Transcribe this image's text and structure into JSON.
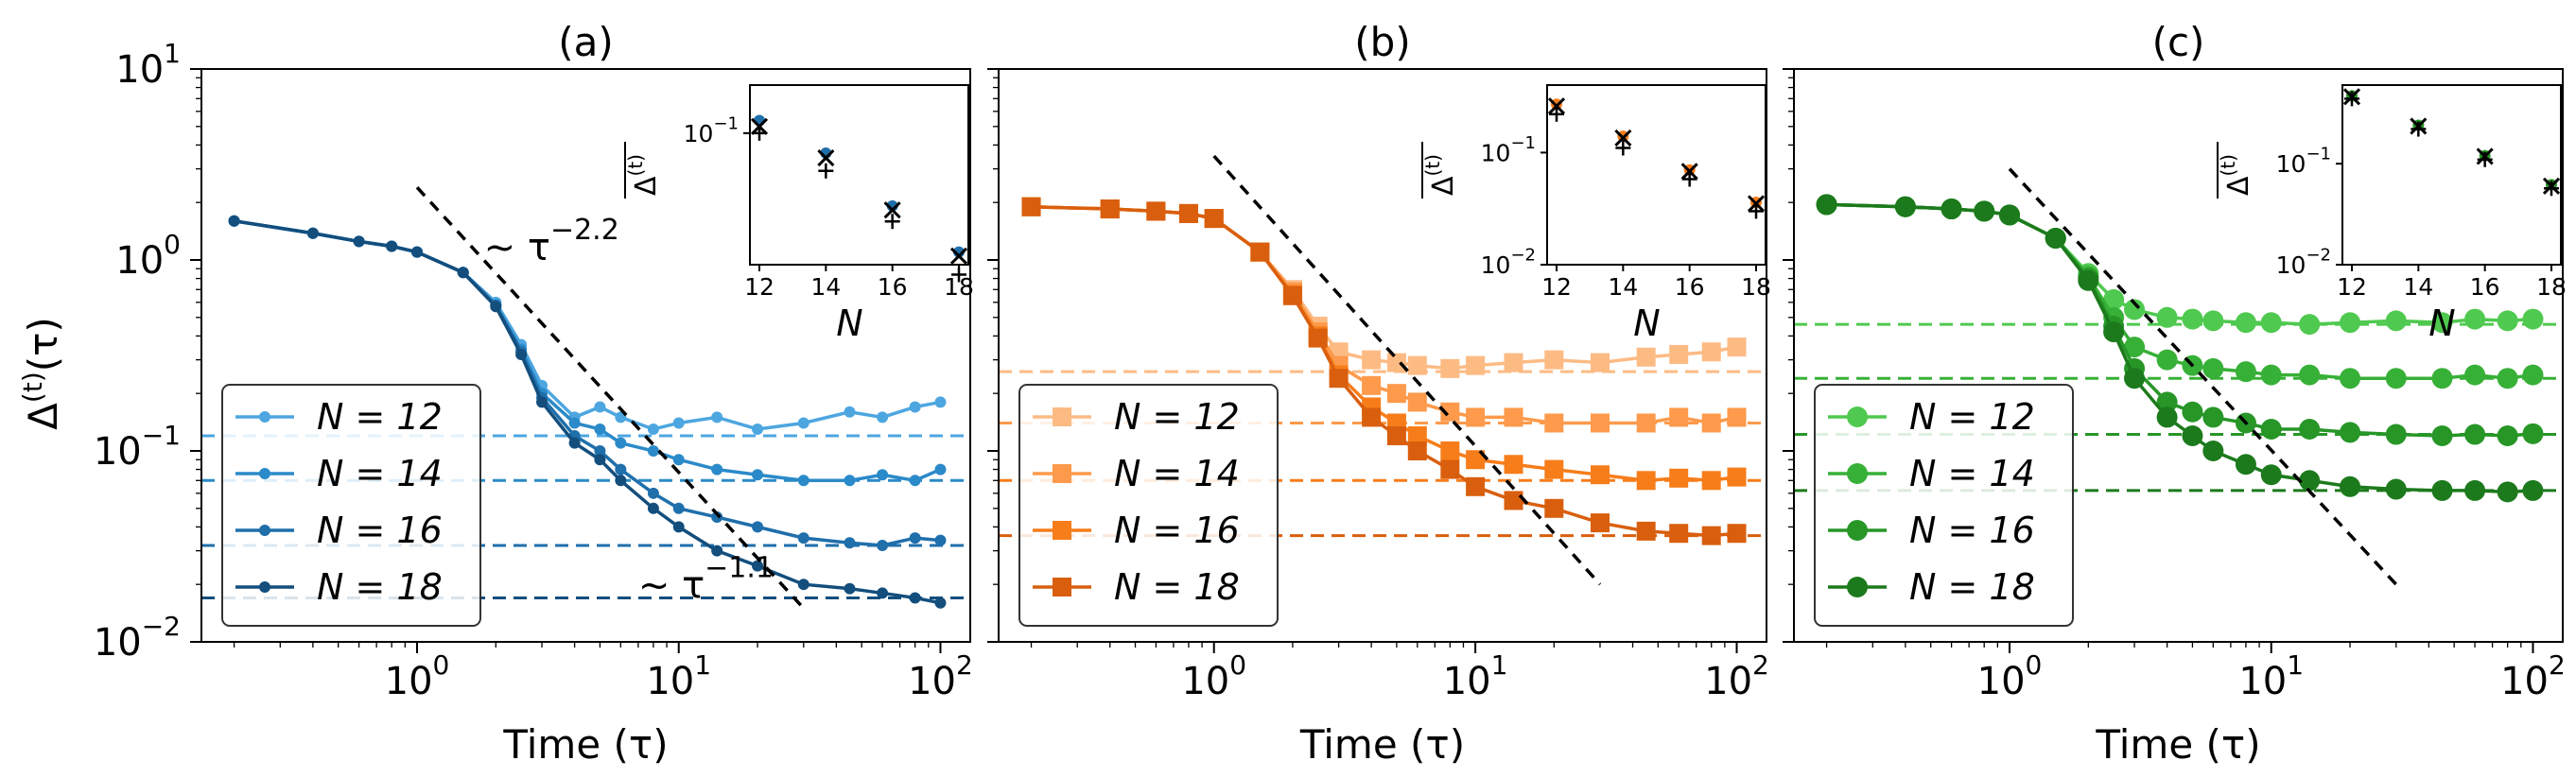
{
  "figure": {
    "ylabel": "Δ^(t)(τ)",
    "xlabel": "Time (τ)",
    "inset_xlabel": "N",
    "inset_ylabel": "Δ^(t)",
    "inset_xticks": [
      "12",
      "14",
      "16",
      "18"
    ],
    "legend_prefix": "N = "
  },
  "chart_data": [
    {
      "panel": "a",
      "type": "line",
      "title": "(a)",
      "xlabel": "Time (τ)",
      "ylabel": "Δ^(t)(τ)",
      "x_scale": "log",
      "y_scale": "log",
      "xlim": [
        0.15,
        130
      ],
      "ylim": [
        0.01,
        10
      ],
      "xticks": [
        "10^0",
        "10^1",
        "10^2"
      ],
      "yticks": [
        "10^-2",
        "10^-1",
        "10^0",
        "10^1"
      ],
      "marker": "circle",
      "legend_position": "lower-left",
      "annotations": [
        {
          "text": "~ τ^-2.2",
          "anchor": [
            1.8,
            1.0
          ]
        },
        {
          "text": "~ τ^-1.1",
          "anchor": [
            7,
            0.017
          ]
        }
      ],
      "fit_lines": [
        {
          "x": [
            1.0,
            30
          ],
          "y": [
            2.4,
            0.015
          ],
          "style": "dashed",
          "color": "#000000"
        }
      ],
      "series": [
        {
          "name": "12",
          "color": "#4da6e0",
          "plateau": 0.12,
          "x": [
            0.2,
            0.4,
            0.6,
            0.8,
            1.0,
            1.5,
            2,
            2.5,
            3,
            4,
            5,
            6,
            8,
            10,
            14,
            20,
            30,
            45,
            60,
            80,
            100
          ],
          "y": [
            1.6,
            1.38,
            1.25,
            1.18,
            1.1,
            0.86,
            0.6,
            0.36,
            0.22,
            0.15,
            0.17,
            0.15,
            0.13,
            0.14,
            0.15,
            0.13,
            0.14,
            0.16,
            0.15,
            0.17,
            0.18
          ]
        },
        {
          "name": "14",
          "color": "#2b8ac9",
          "plateau": 0.07,
          "x": [
            0.2,
            0.4,
            0.6,
            0.8,
            1.0,
            1.5,
            2,
            2.5,
            3,
            4,
            5,
            6,
            8,
            10,
            14,
            20,
            30,
            45,
            60,
            80,
            100
          ],
          "y": [
            1.6,
            1.38,
            1.25,
            1.18,
            1.1,
            0.86,
            0.58,
            0.34,
            0.2,
            0.14,
            0.13,
            0.11,
            0.1,
            0.09,
            0.08,
            0.075,
            0.07,
            0.07,
            0.075,
            0.07,
            0.08
          ]
        },
        {
          "name": "16",
          "color": "#1f6fab",
          "plateau": 0.032,
          "x": [
            0.2,
            0.4,
            0.6,
            0.8,
            1.0,
            1.5,
            2,
            2.5,
            3,
            4,
            5,
            6,
            8,
            10,
            14,
            20,
            30,
            45,
            60,
            80,
            100
          ],
          "y": [
            1.6,
            1.38,
            1.25,
            1.18,
            1.1,
            0.86,
            0.58,
            0.33,
            0.19,
            0.12,
            0.1,
            0.08,
            0.06,
            0.05,
            0.045,
            0.04,
            0.035,
            0.033,
            0.032,
            0.035,
            0.034
          ]
        },
        {
          "name": "18",
          "color": "#134e7d",
          "plateau": 0.017,
          "x": [
            0.2,
            0.4,
            0.6,
            0.8,
            1.0,
            1.5,
            2,
            2.5,
            3,
            4,
            5,
            6,
            8,
            10,
            14,
            20,
            30,
            45,
            60,
            80,
            100
          ],
          "y": [
            1.6,
            1.38,
            1.25,
            1.18,
            1.1,
            0.86,
            0.57,
            0.32,
            0.18,
            0.11,
            0.09,
            0.07,
            0.05,
            0.04,
            0.03,
            0.025,
            0.02,
            0.019,
            0.018,
            0.017,
            0.016
          ]
        }
      ],
      "inset": {
        "xlabel": "N",
        "ylabel": "Δ^(t)",
        "x": [
          12,
          14,
          16,
          18
        ],
        "ylim": [
          0.015,
          0.2
        ],
        "yticks": [
          "10^-1"
        ],
        "hline": 0.2,
        "filled_markers": [
          0.12,
          0.075,
          0.035,
          0.018
        ],
        "x_markers": [
          0.11,
          0.07,
          0.033,
          0.017
        ],
        "plus_markers": [
          0.1,
          0.058,
          0.028,
          0.013
        ]
      }
    },
    {
      "panel": "b",
      "type": "line",
      "title": "(b)",
      "xlabel": "Time (τ)",
      "x_scale": "log",
      "y_scale": "log",
      "xlim": [
        0.15,
        130
      ],
      "ylim": [
        0.01,
        10
      ],
      "xticks": [
        "10^0",
        "10^1",
        "10^2"
      ],
      "marker": "square",
      "legend_position": "lower-left",
      "fit_lines": [
        {
          "x": [
            1.0,
            30
          ],
          "y": [
            3.5,
            0.02
          ],
          "style": "dashed",
          "color": "#000000"
        }
      ],
      "series": [
        {
          "name": "12",
          "color": "#fdbb84",
          "plateau": 0.26,
          "x": [
            0.2,
            0.4,
            0.6,
            0.8,
            1.0,
            1.5,
            2,
            2.5,
            3,
            4,
            5,
            6,
            8,
            10,
            14,
            20,
            30,
            45,
            60,
            80,
            100
          ],
          "y": [
            1.9,
            1.85,
            1.8,
            1.75,
            1.65,
            1.1,
            0.7,
            0.45,
            0.33,
            0.3,
            0.29,
            0.28,
            0.27,
            0.28,
            0.29,
            0.3,
            0.29,
            0.31,
            0.32,
            0.33,
            0.35
          ]
        },
        {
          "name": "14",
          "color": "#fd9a4b",
          "plateau": 0.14,
          "x": [
            0.2,
            0.4,
            0.6,
            0.8,
            1.0,
            1.5,
            2,
            2.5,
            3,
            4,
            5,
            6,
            8,
            10,
            14,
            20,
            30,
            45,
            60,
            80,
            100
          ],
          "y": [
            1.9,
            1.85,
            1.8,
            1.75,
            1.65,
            1.1,
            0.68,
            0.42,
            0.28,
            0.22,
            0.2,
            0.18,
            0.16,
            0.15,
            0.15,
            0.14,
            0.14,
            0.14,
            0.15,
            0.14,
            0.15
          ]
        },
        {
          "name": "16",
          "color": "#f77d1a",
          "plateau": 0.07,
          "x": [
            0.2,
            0.4,
            0.6,
            0.8,
            1.0,
            1.5,
            2,
            2.5,
            3,
            4,
            5,
            6,
            8,
            10,
            14,
            20,
            30,
            45,
            60,
            80,
            100
          ],
          "y": [
            1.9,
            1.85,
            1.8,
            1.75,
            1.65,
            1.1,
            0.66,
            0.4,
            0.25,
            0.17,
            0.14,
            0.12,
            0.1,
            0.09,
            0.085,
            0.08,
            0.075,
            0.07,
            0.072,
            0.07,
            0.073
          ]
        },
        {
          "name": "18",
          "color": "#d95f0e",
          "plateau": 0.036,
          "x": [
            0.2,
            0.4,
            0.6,
            0.8,
            1.0,
            1.5,
            2,
            2.5,
            3,
            4,
            5,
            6,
            8,
            10,
            14,
            20,
            30,
            45,
            60,
            80,
            100
          ],
          "y": [
            1.9,
            1.85,
            1.8,
            1.75,
            1.65,
            1.1,
            0.65,
            0.39,
            0.24,
            0.15,
            0.12,
            0.1,
            0.08,
            0.065,
            0.055,
            0.05,
            0.042,
            0.038,
            0.037,
            0.036,
            0.037
          ]
        }
      ],
      "inset": {
        "xlabel": "N",
        "ylabel": "Δ^(t)",
        "x": [
          12,
          14,
          16,
          18
        ],
        "ylim": [
          0.01,
          0.4
        ],
        "yticks": [
          "10^-2",
          "10^-1"
        ],
        "hline": 0.4,
        "filled_markers": [
          0.27,
          0.14,
          0.07,
          0.036
        ],
        "x_markers": [
          0.26,
          0.135,
          0.068,
          0.035
        ],
        "plus_markers": [
          0.22,
          0.11,
          0.058,
          0.03
        ]
      }
    },
    {
      "panel": "c",
      "type": "line",
      "title": "(c)",
      "xlabel": "Time (τ)",
      "x_scale": "log",
      "y_scale": "log",
      "xlim": [
        0.15,
        130
      ],
      "ylim": [
        0.01,
        10
      ],
      "xticks": [
        "10^0",
        "10^1",
        "10^2"
      ],
      "marker": "circle",
      "legend_position": "lower-left",
      "fit_lines": [
        {
          "x": [
            1.0,
            30
          ],
          "y": [
            3.0,
            0.02
          ],
          "style": "dashed",
          "color": "#000000"
        }
      ],
      "series": [
        {
          "name": "12",
          "color": "#4fc94f",
          "plateau": 0.46,
          "x": [
            0.2,
            0.4,
            0.6,
            0.8,
            1.0,
            1.5,
            2,
            2.5,
            3,
            4,
            5,
            6,
            8,
            10,
            14,
            20,
            30,
            45,
            60,
            80,
            100
          ],
          "y": [
            1.95,
            1.9,
            1.85,
            1.8,
            1.72,
            1.3,
            0.85,
            0.62,
            0.55,
            0.5,
            0.49,
            0.48,
            0.47,
            0.47,
            0.46,
            0.47,
            0.48,
            0.47,
            0.49,
            0.48,
            0.49
          ]
        },
        {
          "name": "14",
          "color": "#37b037",
          "plateau": 0.24,
          "x": [
            0.2,
            0.4,
            0.6,
            0.8,
            1.0,
            1.5,
            2,
            2.5,
            3,
            4,
            5,
            6,
            8,
            10,
            14,
            20,
            30,
            45,
            60,
            80,
            100
          ],
          "y": [
            1.95,
            1.9,
            1.85,
            1.8,
            1.72,
            1.3,
            0.82,
            0.5,
            0.35,
            0.3,
            0.28,
            0.27,
            0.26,
            0.25,
            0.25,
            0.24,
            0.24,
            0.24,
            0.25,
            0.24,
            0.25
          ]
        },
        {
          "name": "16",
          "color": "#279627",
          "plateau": 0.122,
          "x": [
            0.2,
            0.4,
            0.6,
            0.8,
            1.0,
            1.5,
            2,
            2.5,
            3,
            4,
            5,
            6,
            8,
            10,
            14,
            20,
            30,
            45,
            60,
            80,
            100
          ],
          "y": [
            1.95,
            1.9,
            1.85,
            1.8,
            1.72,
            1.3,
            0.8,
            0.45,
            0.27,
            0.18,
            0.16,
            0.15,
            0.14,
            0.13,
            0.13,
            0.125,
            0.122,
            0.12,
            0.122,
            0.12,
            0.123
          ]
        },
        {
          "name": "18",
          "color": "#1c7a1c",
          "plateau": 0.062,
          "x": [
            0.2,
            0.4,
            0.6,
            0.8,
            1.0,
            1.5,
            2,
            2.5,
            3,
            4,
            5,
            6,
            8,
            10,
            14,
            20,
            30,
            45,
            60,
            80,
            100
          ],
          "y": [
            1.95,
            1.9,
            1.85,
            1.8,
            1.72,
            1.3,
            0.78,
            0.42,
            0.24,
            0.15,
            0.12,
            0.1,
            0.085,
            0.075,
            0.07,
            0.065,
            0.063,
            0.062,
            0.062,
            0.061,
            0.062
          ]
        }
      ],
      "inset": {
        "xlabel": "N",
        "ylabel": "Δ^(t)",
        "x": [
          12,
          14,
          16,
          18
        ],
        "ylim": [
          0.01,
          0.6
        ],
        "yticks": [
          "10^-2",
          "10^-1"
        ],
        "hline": null,
        "filled_markers": [
          0.47,
          0.24,
          0.12,
          0.062
        ],
        "x_markers": [
          0.46,
          0.235,
          0.118,
          0.06
        ],
        "plus_markers": [
          0.44,
          0.22,
          0.11,
          0.057
        ]
      }
    }
  ]
}
